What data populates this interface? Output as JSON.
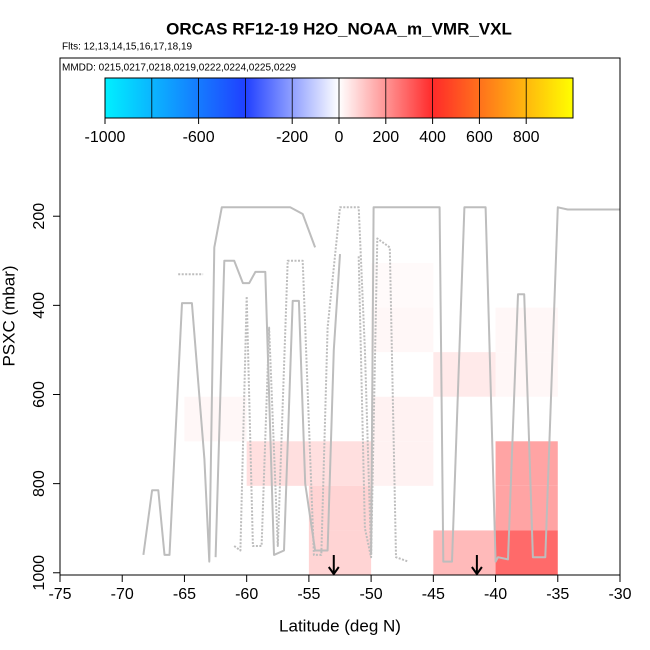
{
  "chart_data": {
    "type": "heatmap",
    "title": "ORCAS RF12-19 H2O_NOAA_m_VMR_VXL",
    "subtitle": "Flts: 12,13,14,15,16,17,18,19",
    "annotation": "MMDD: 0215,0217,0218,0219,0222,0224,0225,0229",
    "xlabel": "Latitude (deg N)",
    "ylabel": "PSXC (mbar)",
    "xlim": [
      -75,
      -30
    ],
    "xticks": [
      -75,
      -70,
      -65,
      -60,
      -55,
      -50,
      -45,
      -40,
      -35,
      -30
    ],
    "ylim": [
      1005,
      -155
    ],
    "yticks": [
      200,
      400,
      600,
      800,
      1000
    ],
    "colorbar": {
      "lim": [
        -1000,
        1000
      ],
      "ticks": [
        -1000,
        -600,
        -200,
        0,
        200,
        400,
        600,
        800
      ],
      "breaks": [
        -800,
        -600,
        -400,
        -200,
        0,
        200,
        400,
        600,
        800
      ],
      "stops": [
        {
          "value": -1000,
          "color": "#00f0ff"
        },
        {
          "value": -400,
          "color": "#2040ff"
        },
        {
          "value": 0,
          "color": "#ffffff"
        },
        {
          "value": 400,
          "color": "#ff2a2a"
        },
        {
          "value": 1000,
          "color": "#ffff00"
        }
      ]
    },
    "cells": {
      "lat0": [
        -65,
        -60,
        -55,
        -55,
        -55,
        -50,
        -50,
        -50,
        -50,
        -45,
        -45,
        -40,
        -40,
        -40,
        -40,
        -40
      ],
      "lat1": [
        -60,
        -55,
        -50,
        -50,
        -50,
        -45,
        -45,
        -45,
        -45,
        -40,
        -40,
        -35,
        -35,
        -35,
        -35,
        -35
      ],
      "p0": [
        605,
        705,
        705,
        805,
        905,
        305,
        405,
        605,
        705,
        505,
        905,
        405,
        505,
        705,
        805,
        905
      ],
      "p1": [
        705,
        805,
        805,
        905,
        1005,
        405,
        505,
        705,
        805,
        605,
        1005,
        505,
        605,
        805,
        905,
        1005
      ],
      "values": [
        15,
        60,
        60,
        80,
        80,
        10,
        15,
        25,
        25,
        40,
        130,
        15,
        15,
        170,
        170,
        280
      ]
    },
    "track_color": "#bdbdbd",
    "tracks": [
      {
        "lat": [
          -68.3,
          -67.6,
          -67.1,
          -66.6,
          -66.2,
          -65.2,
          -64.4,
          -63.4,
          -63.0,
          -62.6,
          -62,
          -61,
          -60,
          -59,
          -58.4,
          -57.6,
          -56.5,
          -55.5,
          -54.5
        ],
        "p": [
          960,
          815,
          815,
          960,
          960,
          395,
          395,
          745,
          975,
          270,
          180,
          180,
          180,
          180,
          180,
          180,
          180,
          195,
          270
        ]
      },
      {
        "lat": [
          -65.5,
          -63.5
        ],
        "p": [
          330,
          330
        ]
      },
      {
        "lat": [
          -62.5,
          -61.8,
          -61,
          -60.3,
          -59.8,
          -59.3,
          -58.5,
          -57.8,
          -57,
          -56.3,
          -55.8,
          -55.3,
          -54.5,
          -53.5,
          -53,
          -52.5
        ],
        "p": [
          965,
          300,
          300,
          350,
          350,
          325,
          325,
          960,
          950,
          390,
          390,
          800,
          950,
          950,
          500,
          285
        ]
      },
      {
        "lat": [
          -61,
          -60.5,
          -60,
          -59.5,
          -58.8,
          -58.2,
          -57.5,
          -56.7,
          -55.5,
          -54.6,
          -54,
          -53.5,
          -52.5,
          -51.5,
          -51,
          -50.5,
          -50
        ],
        "p": [
          940,
          950,
          380,
          940,
          940,
          450,
          940,
          300,
          300,
          960,
          960,
          450,
          180,
          180,
          180,
          500,
          960
        ]
      },
      {
        "lat": [
          -50,
          -49.8,
          -49.2,
          -48.5,
          -47,
          -45.5,
          -44.5,
          -44.2,
          -43.5,
          -42.5,
          -41.7,
          -40.8,
          -40,
          -39.8,
          -39,
          -38.2,
          -37.7,
          -37,
          -36,
          -35,
          -34.2,
          -33,
          -31,
          -30
        ],
        "p": [
          960,
          180,
          180,
          180,
          180,
          180,
          180,
          975,
          975,
          180,
          180,
          180,
          975,
          965,
          970,
          375,
          375,
          965,
          965,
          180,
          185,
          185,
          185,
          185
        ]
      },
      {
        "lat": [
          -51,
          -50.5,
          -50,
          -49.5,
          -48.5,
          -48,
          -47
        ],
        "p": [
          290,
          900,
          965,
          250,
          270,
          965,
          975
        ]
      }
    ],
    "arrows": [
      -53,
      -41.5
    ]
  }
}
